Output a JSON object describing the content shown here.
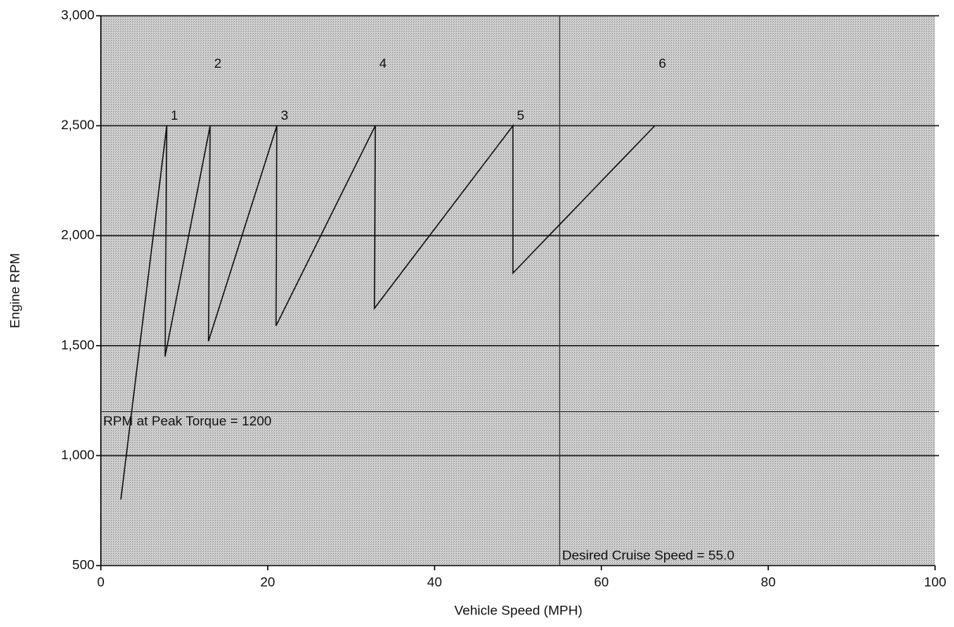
{
  "chart_data": {
    "type": "line",
    "x_label": "Vehicle Speed (MPH)",
    "y_label": "Engine RPM",
    "x": [
      2.4,
      7.9,
      7.7,
      13.1,
      12.9,
      21.1,
      21.0,
      32.9,
      32.8,
      49.4,
      49.4,
      66.4
    ],
    "series": [
      {
        "name": "Engine RPM",
        "color": "#111111",
        "values": [
          800,
          2500,
          1450,
          2500,
          1520,
          2500,
          1590,
          2500,
          1670,
          2500,
          1830,
          2500
        ]
      }
    ],
    "gear_labels": [
      "1",
      "2",
      "3",
      "4",
      "5",
      "6"
    ],
    "annotations": [
      {
        "text": "RPM at Peak Torque = 1200",
        "y": 1200
      },
      {
        "text": "Desired Cruise Speed = 55.0",
        "x": 55
      }
    ],
    "xlim": [
      0,
      100
    ],
    "xticks": [
      0,
      20,
      40,
      60,
      80,
      100
    ],
    "ylim": [
      500,
      3000
    ],
    "yticks": [
      500,
      {
        "value": 1000,
        "label": "1,000"
      },
      {
        "value": 1500,
        "label": "1,500"
      },
      {
        "value": 2000,
        "label": "2,000"
      },
      {
        "value": 2500,
        "label": "2,500"
      },
      {
        "value": 3000,
        "label": "3,000"
      }
    ],
    "grid": true
  }
}
